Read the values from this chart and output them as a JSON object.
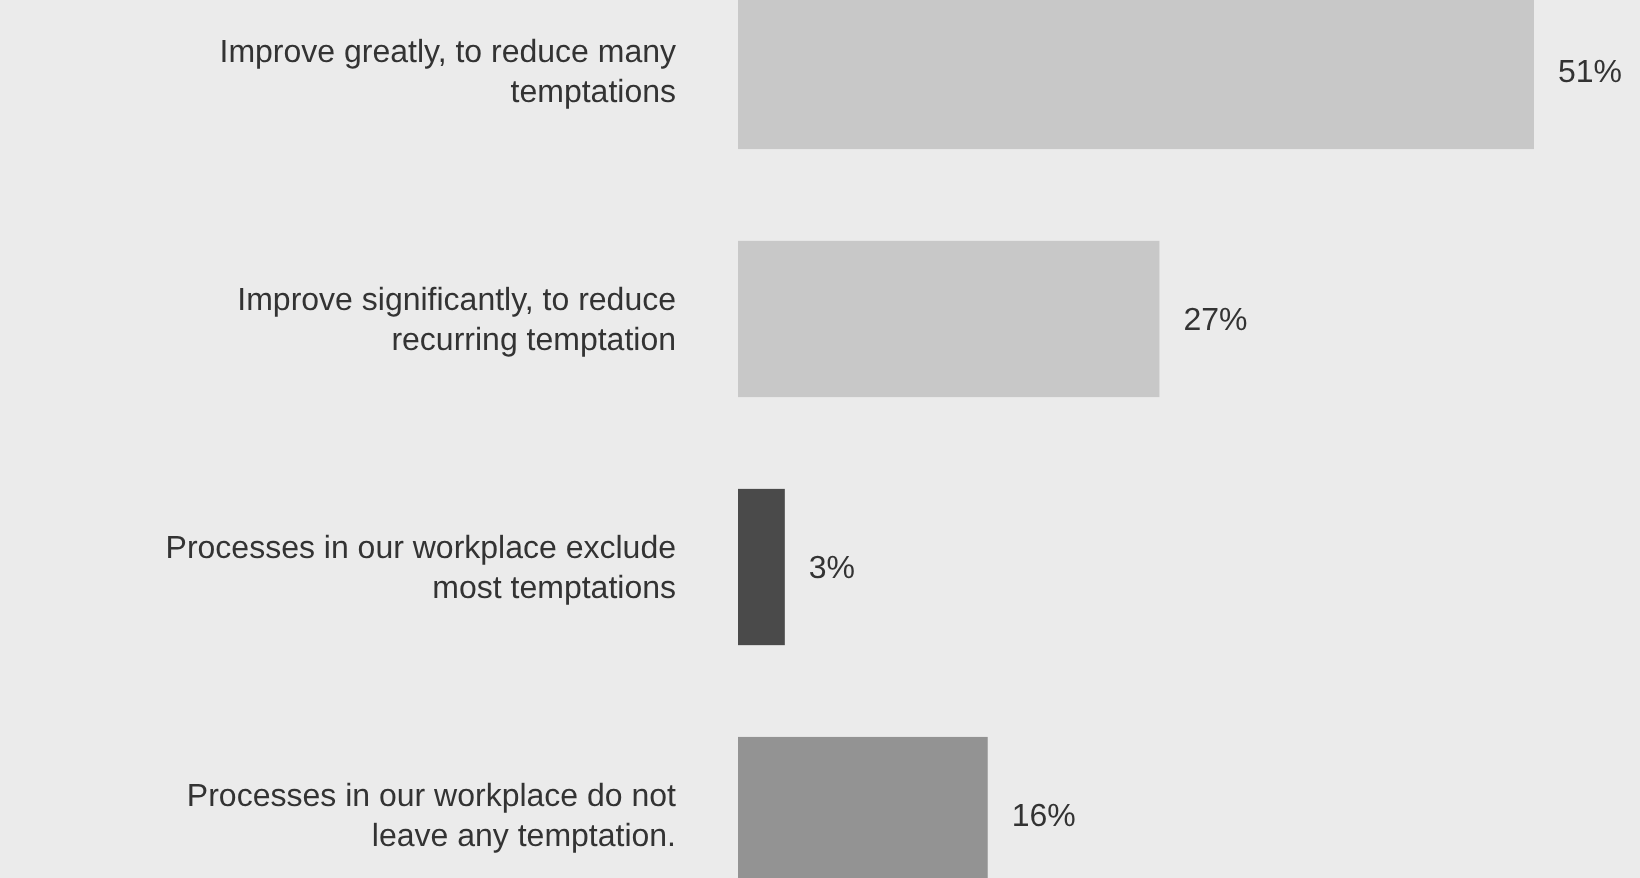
{
  "chart_data": {
    "type": "bar",
    "orientation": "horizontal",
    "categories": [
      "Improve greatly, to reduce many temptations",
      "Improve significantly, to reduce recurring temptation",
      "Processes in our workplace exclude most temptations",
      "Processes in our workplace do not leave any temptation."
    ],
    "values": [
      51,
      27,
      3,
      16
    ],
    "colors": [
      "#c8c8c8",
      "#c8c8c8",
      "#4a4a4a",
      "#939393"
    ],
    "value_labels": [
      "51%",
      "27%",
      "3%",
      "16%"
    ]
  }
}
